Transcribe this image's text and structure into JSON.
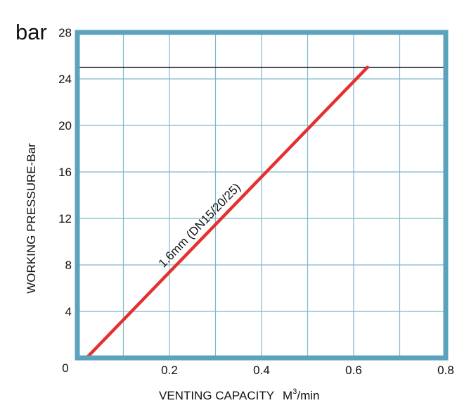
{
  "chart_data": {
    "type": "line",
    "y_unit": "bar",
    "xlabel": "VENTING CAPACITY",
    "xlabel_unit": "M",
    "xlabel_unit_sup": "3",
    "xlabel_unit_tail": "/min",
    "ylabel": "WORKING PRESSURE-Bar",
    "xlim": [
      0,
      0.8
    ],
    "ylim": [
      0,
      28
    ],
    "x_ticks": [
      "0.2",
      "0.4",
      "0.6",
      "0.8"
    ],
    "y_ticks": [
      "0",
      "4",
      "8",
      "12",
      "16",
      "20",
      "24",
      "28"
    ],
    "x_tick_values": [
      0.2,
      0.4,
      0.6,
      0.8
    ],
    "y_tick_values": [
      0,
      4,
      8,
      12,
      16,
      20,
      24,
      28
    ],
    "grid": true,
    "reference_line_y": 25,
    "series": [
      {
        "name": "1.6mm (DN15/20/25)",
        "color": "#e53030",
        "points": [
          [
            0.02,
            0
          ],
          [
            0.63,
            25
          ]
        ]
      }
    ],
    "colors": {
      "frame": "#5ba3bd",
      "grid": "#7fb8cc",
      "reference_line": "#111111"
    }
  }
}
